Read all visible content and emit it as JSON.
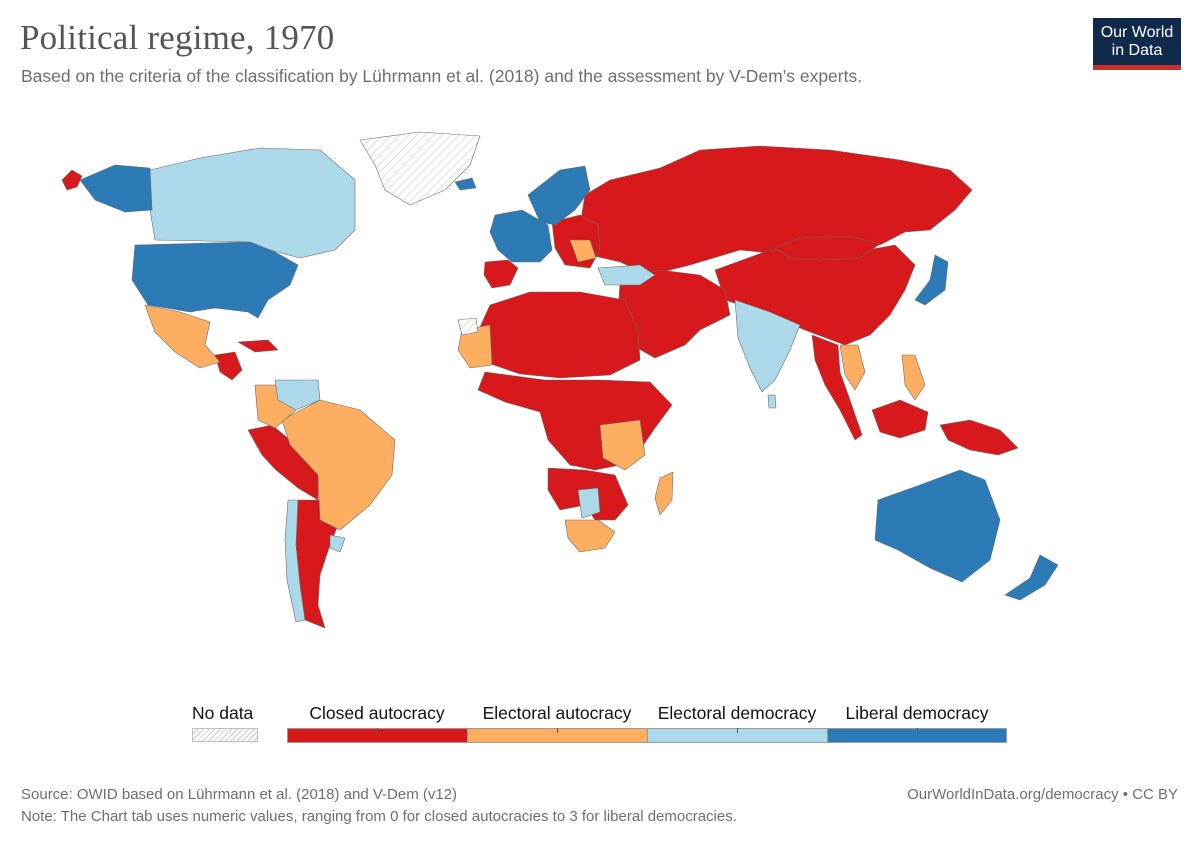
{
  "header": {
    "title": "Political regime, 1970",
    "subtitle": "Based on the criteria of the classification by Lührmann et al. (2018) and the assessment by V-Dem’s experts."
  },
  "logo": {
    "line1": "Our World",
    "line2": "in Data",
    "bg": "#0f2a4a",
    "accent": "#c62f2f"
  },
  "legend": {
    "no_data_label": "No data",
    "categories": [
      {
        "label": "Closed autocracy",
        "value": 0,
        "color": "#d7191c"
      },
      {
        "label": "Electoral autocracy",
        "value": 1,
        "color": "#fdae61"
      },
      {
        "label": "Electoral democracy",
        "value": 2,
        "color": "#abd9e9"
      },
      {
        "label": "Liberal democracy",
        "value": 3,
        "color": "#2c7bb6"
      }
    ]
  },
  "map_data": {
    "year": 1970,
    "regions": [
      {
        "name": "Soviet Union",
        "category": "Closed autocracy"
      },
      {
        "name": "China",
        "category": "Closed autocracy"
      },
      {
        "name": "Mongolia",
        "category": "Closed autocracy"
      },
      {
        "name": "Alaska",
        "category": "Closed autocracy"
      },
      {
        "name": "Spain",
        "category": "Closed autocracy"
      },
      {
        "name": "Eastern Europe",
        "category": "Closed autocracy"
      },
      {
        "name": "Middle East",
        "category": "Closed autocracy"
      },
      {
        "name": "North Africa",
        "category": "Closed autocracy"
      },
      {
        "name": "Central Africa",
        "category": "Closed autocracy"
      },
      {
        "name": "Southern Africa",
        "category": "Closed autocracy"
      },
      {
        "name": "Peru / Bolivia",
        "category": "Closed autocracy"
      },
      {
        "name": "Argentina",
        "category": "Closed autocracy"
      },
      {
        "name": "Southeast Asia",
        "category": "Closed autocracy"
      },
      {
        "name": "Indonesia / New Guinea",
        "category": "Closed autocracy"
      },
      {
        "name": "Cuba",
        "category": "Closed autocracy"
      },
      {
        "name": "Central America",
        "category": "Closed autocracy"
      },
      {
        "name": "Mexico",
        "category": "Electoral autocracy"
      },
      {
        "name": "Brazil",
        "category": "Electoral autocracy"
      },
      {
        "name": "Colombia / Ecuador",
        "category": "Electoral autocracy"
      },
      {
        "name": "Mauritania / West Africa",
        "category": "Electoral autocracy"
      },
      {
        "name": "Tanzania / Zambia",
        "category": "Electoral autocracy"
      },
      {
        "name": "South Africa",
        "category": "Electoral autocracy"
      },
      {
        "name": "Madagascar",
        "category": "Electoral autocracy"
      },
      {
        "name": "Indochina",
        "category": "Electoral autocracy"
      },
      {
        "name": "Philippines",
        "category": "Electoral autocracy"
      },
      {
        "name": "Yugoslavia",
        "category": "Electoral autocracy"
      },
      {
        "name": "Canada",
        "category": "Electoral democracy"
      },
      {
        "name": "India",
        "category": "Electoral democracy"
      },
      {
        "name": "Turkey",
        "category": "Electoral democracy"
      },
      {
        "name": "Chile",
        "category": "Electoral democracy"
      },
      {
        "name": "Uruguay",
        "category": "Electoral democracy"
      },
      {
        "name": "Venezuela",
        "category": "Electoral democracy"
      },
      {
        "name": "Botswana",
        "category": "Electoral democracy"
      },
      {
        "name": "Sri Lanka",
        "category": "Electoral democracy"
      },
      {
        "name": "United States",
        "category": "Liberal democracy"
      },
      {
        "name": "Western Europe",
        "category": "Liberal democracy"
      },
      {
        "name": "Scandinavia",
        "category": "Liberal democracy"
      },
      {
        "name": "Japan",
        "category": "Liberal democracy"
      },
      {
        "name": "Australia",
        "category": "Liberal democracy"
      },
      {
        "name": "New Zealand",
        "category": "Liberal democracy"
      },
      {
        "name": "Iceland",
        "category": "Liberal democracy"
      },
      {
        "name": "Greenland",
        "category": "No data"
      },
      {
        "name": "Western Sahara",
        "category": "No data"
      }
    ]
  },
  "footer": {
    "source": "Source: OWID based on Lührmann et al. (2018) and V-Dem (v12)",
    "url_license": "OurWorldInData.org/democracy • CC BY",
    "note": "Note: The Chart tab uses numeric values, ranging from 0 for closed autocracies to 3 for liberal democracies."
  }
}
